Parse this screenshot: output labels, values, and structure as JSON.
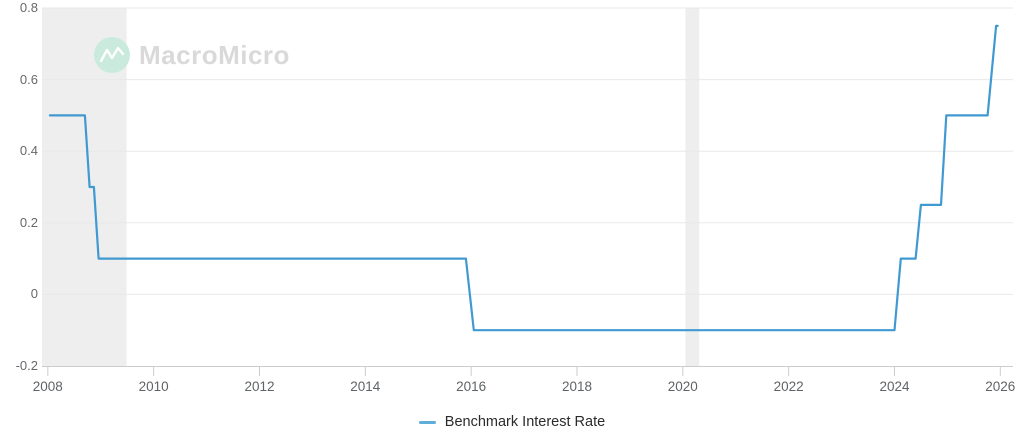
{
  "watermark": {
    "brand": "MacroMicro",
    "icon": "line-chart-zigzag",
    "circle_color": "#c9eadd",
    "zigzag_color": "#ffffff",
    "text_color": "#d9d9d9"
  },
  "legend": {
    "items": [
      {
        "label": "Benchmark Interest Rate",
        "color": "#5faed9"
      }
    ]
  },
  "chart_data": {
    "type": "line",
    "title": "",
    "xlabel": "",
    "ylabel": "",
    "series": [
      {
        "name": "Benchmark Interest Rate",
        "color": "#4199d2",
        "points": [
          [
            2008.04,
            0.5
          ],
          [
            2008.7,
            0.5
          ],
          [
            2008.79,
            0.3
          ],
          [
            2008.87,
            0.3
          ],
          [
            2008.96,
            0.1
          ],
          [
            2015.9,
            0.1
          ],
          [
            2016.05,
            -0.1
          ],
          [
            2024.0,
            -0.1
          ],
          [
            2024.12,
            0.1
          ],
          [
            2024.4,
            0.1
          ],
          [
            2024.5,
            0.25
          ],
          [
            2024.88,
            0.25
          ],
          [
            2024.98,
            0.5
          ],
          [
            2025.76,
            0.5
          ],
          [
            2025.92,
            0.75
          ],
          [
            2025.95,
            0.75
          ]
        ]
      }
    ],
    "x_ticks": [
      2008,
      2010,
      2012,
      2014,
      2016,
      2018,
      2020,
      2022,
      2024,
      2026
    ],
    "y_ticks": [
      {
        "value": 0.8,
        "label": "0.8"
      },
      {
        "value": 0.6,
        "label": "0.6"
      },
      {
        "value": 0.4,
        "label": "0.4"
      },
      {
        "value": 0.2,
        "label": "0.2"
      },
      {
        "value": 0,
        "label": "0"
      },
      {
        "value": -0.2,
        "label": "-0.2"
      }
    ],
    "xlim": [
      2007.89,
      2026.24
    ],
    "ylim": [
      -0.2,
      0.8
    ],
    "grid": "horizontal",
    "legend_position": "bottom-center",
    "recession_bands": [
      {
        "from": 2007.89,
        "to": 2009.49
      },
      {
        "from": 2020.05,
        "to": 2020.31
      }
    ],
    "colors": {
      "band_fill": "#eeeeee",
      "gridline": "#e8e8e8",
      "axis_line": "#cccccc",
      "tick_mark": "#cccccc"
    }
  }
}
